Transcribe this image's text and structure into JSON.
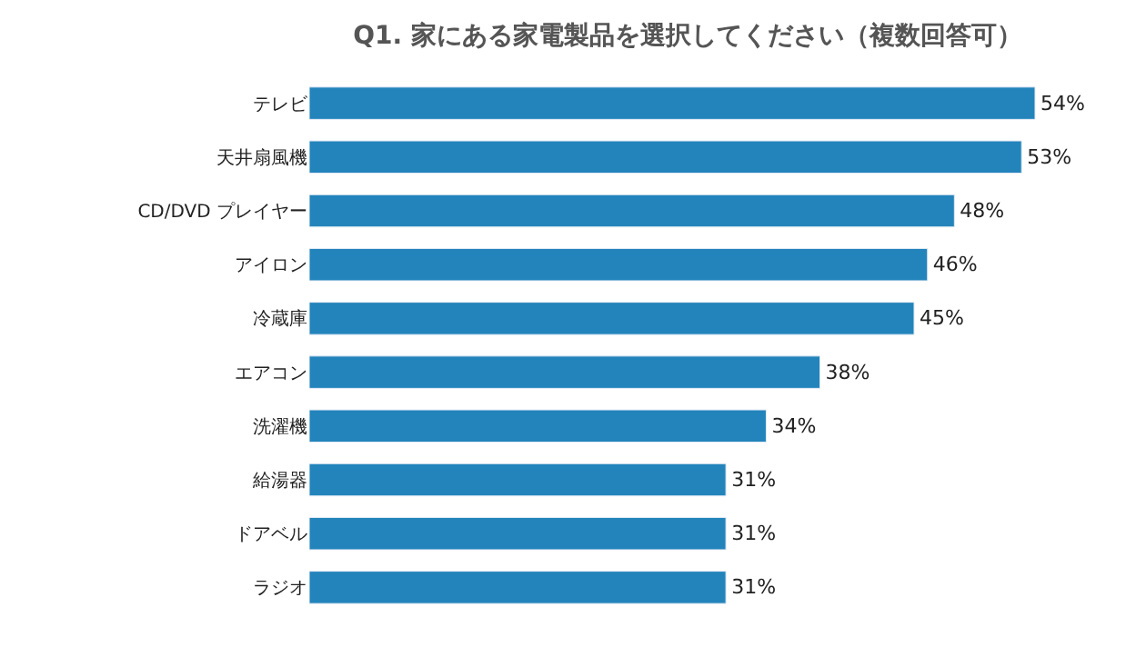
{
  "chart_data": {
    "type": "bar",
    "orientation": "horizontal",
    "title": "Q1. 家にある家電製品を選択してください（複数回答可）",
    "categories": [
      "テレビ",
      "天井扇風機",
      "CD/DVD プレイヤー",
      "アイロン",
      "冷蔵庫",
      "エアコン",
      "洗濯機",
      "給湯器",
      "ドアベル",
      "ラジオ"
    ],
    "values": [
      54,
      53,
      48,
      46,
      45,
      38,
      34,
      31,
      31,
      31
    ],
    "value_labels": [
      "54%",
      "53%",
      "48%",
      "46%",
      "45%",
      "38%",
      "34%",
      "31%",
      "31%",
      "31%"
    ],
    "color": "#2384bb",
    "tick_labels": "y"
  }
}
